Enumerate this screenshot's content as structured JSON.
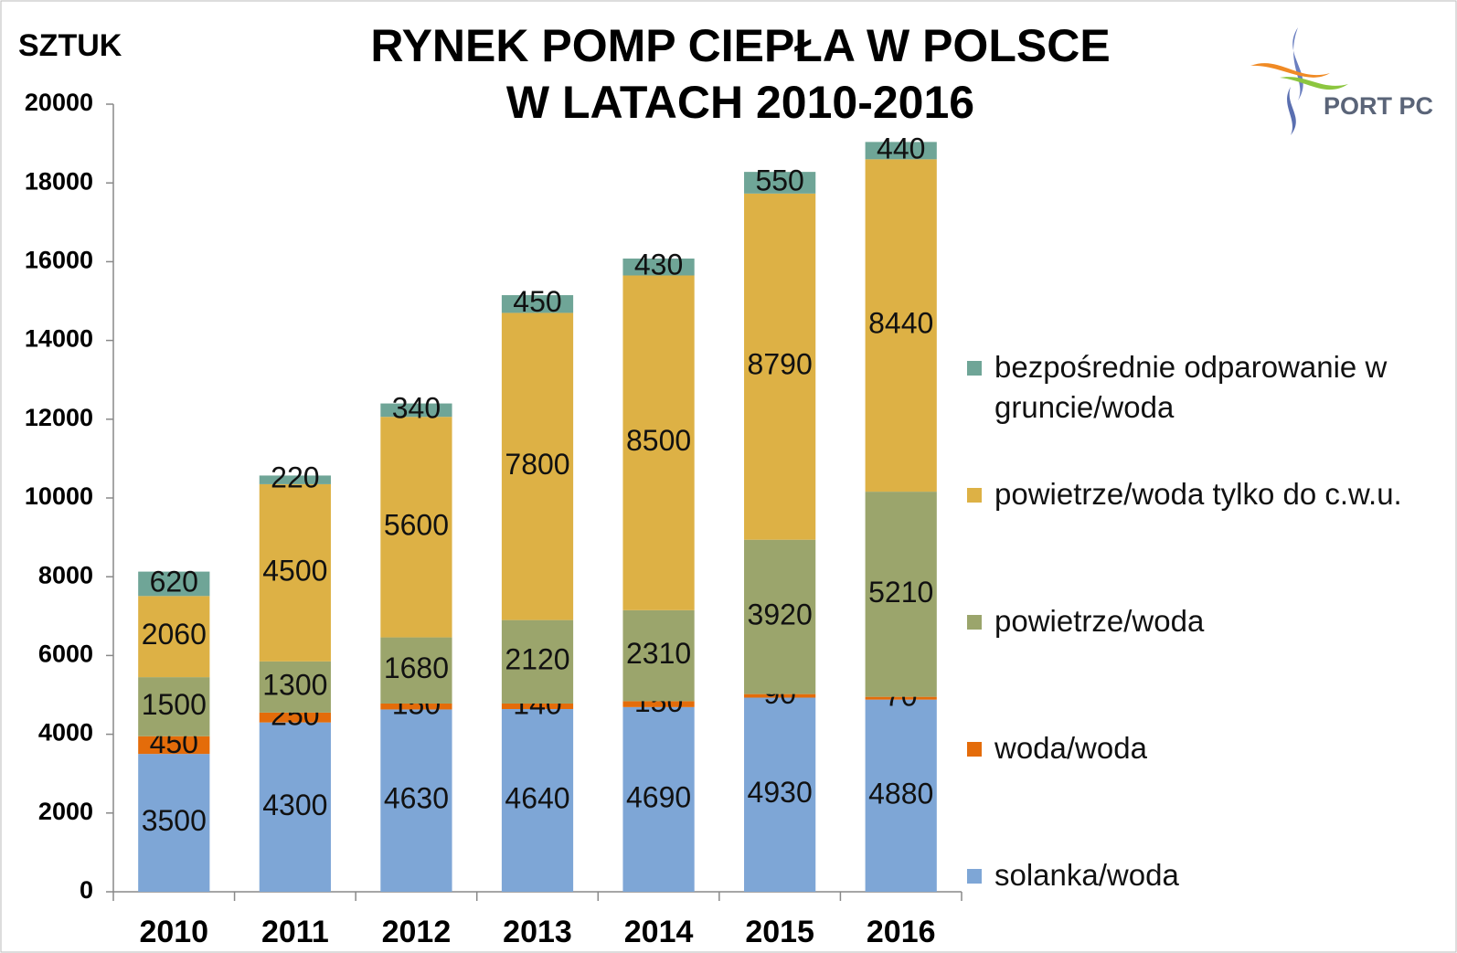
{
  "chart_data": {
    "type": "stacked_bar",
    "title": [
      "RYNEK POMP CIEPŁA W POLSCE",
      "W LATACH 2010-2016"
    ],
    "y_label": "SZTUK",
    "logo": "PORT PC",
    "categories": [
      "2010",
      "2011",
      "2012",
      "2013",
      "2014",
      "2015",
      "2016"
    ],
    "series": [
      {
        "name": "solanka/woda",
        "color": "#7ea6d6",
        "values": [
          3500,
          4300,
          4630,
          4640,
          4690,
          4930,
          4880
        ]
      },
      {
        "name": "woda/woda",
        "color": "#e46c0a",
        "values": [
          450,
          250,
          150,
          140,
          150,
          90,
          70
        ]
      },
      {
        "name": "powietrze/woda",
        "color": "#9ba56c",
        "values": [
          1500,
          1300,
          1680,
          2120,
          2310,
          3920,
          5210
        ]
      },
      {
        "name": "powietrze/woda tylko do c.w.u.",
        "color": "#ddb145",
        "values": [
          2060,
          4500,
          5600,
          7800,
          8500,
          8790,
          8440
        ]
      },
      {
        "name": "bezpośrednie odparowanie w gruncie/woda",
        "color": "#6fa597",
        "values": [
          620,
          220,
          340,
          450,
          430,
          550,
          440
        ]
      }
    ],
    "ylim": [
      0,
      20000
    ],
    "yticks": [
      0,
      2000,
      4000,
      6000,
      8000,
      10000,
      12000,
      14000,
      16000,
      18000,
      20000
    ],
    "grid": false,
    "legend": "right"
  }
}
